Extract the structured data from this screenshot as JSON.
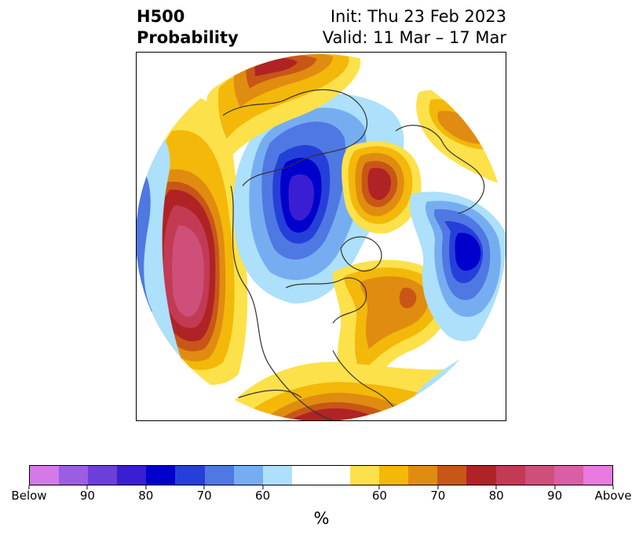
{
  "header": {
    "title_line1": "H500",
    "title_line2": "Probability",
    "init_text": "Init: Thu 23 Feb 2023",
    "valid_text": "Valid: 11 Mar – 17 Mar"
  },
  "map": {
    "projection": "north-polar-stereographic",
    "colors": {
      "below_90_plus": "#d47ae8",
      "below_90": "#9b5ee2",
      "below_85": "#6d3fd9",
      "below_80": "#3a1fd2",
      "below_75": "#0000cd",
      "below_70": "#2540d9",
      "below_65": "#4f78e3",
      "below_60": "#76adf1",
      "below_55": "#ace0fb",
      "neutral": "#ffffff",
      "above_55": "#fde14a",
      "above_60": "#f3b809",
      "above_65": "#e08c11",
      "above_70": "#c85717",
      "above_75": "#b02325",
      "above_80": "#c23a54",
      "above_85": "#ce4f79",
      "above_90": "#da5ea5",
      "above_90_plus": "#e87ae0"
    }
  },
  "colorbar": {
    "segment_colors": [
      "#d47ae8",
      "#9b5ee2",
      "#6d3fd9",
      "#3a1fd2",
      "#0000cd",
      "#2540d9",
      "#4f78e3",
      "#76adf1",
      "#ace0fb",
      "#ffffff",
      "#ffffff",
      "#fde14a",
      "#f3b809",
      "#e08c11",
      "#c85717",
      "#b02325",
      "#c23a54",
      "#ce4f79",
      "#da5ea5",
      "#e87ae0"
    ],
    "tick_labels": [
      "Below",
      "90",
      "80",
      "70",
      "60",
      "60",
      "70",
      "80",
      "90",
      "Above"
    ],
    "units_label": "%"
  }
}
